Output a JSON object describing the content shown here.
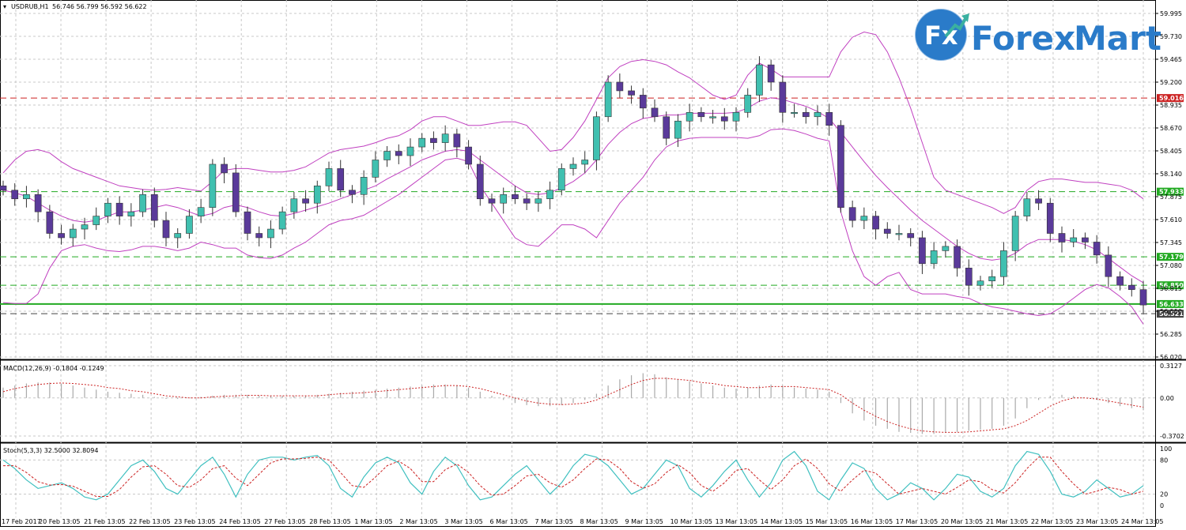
{
  "colors": {
    "bullish": "#40c0b0",
    "bearish": "#5a3a9a",
    "bands": "#c040c0",
    "grid": "#c8c8c8",
    "resistance_red": "#cc2222",
    "support_green": "#22aa22",
    "support_gray": "#444444",
    "macd_hist": "#aaaaaa",
    "macd_signal": "#cc2222",
    "stoch_main": "#40c0c0",
    "stoch_signal": "#cc2222",
    "brand_blue": "#2a7bc9",
    "brand_teal": "#3ab0a0"
  },
  "brand": {
    "icon_text": "Fx",
    "name_part1": "Forex",
    "name_part2": "Mart"
  },
  "chart_data": [
    {
      "type": "candlestick",
      "title": "USDRUB,H1",
      "ohlc_readout": "56.746 56.799 56.592 56.622",
      "ylim": [
        56.02,
        59.995
      ],
      "y_ticks": [
        "59.995",
        "59.730",
        "59.465",
        "59.200",
        "58.935",
        "58.670",
        "58.405",
        "58.140",
        "57.875",
        "57.610",
        "57.345",
        "57.080",
        "56.815",
        "56.550",
        "56.285",
        "56.020"
      ],
      "x_ticks": [
        "17 Feb 2017",
        "20 Feb 13:05",
        "21 Feb 13:05",
        "22 Feb 13:05",
        "23 Feb 13:05",
        "24 Feb 13:05",
        "27 Feb 13:05",
        "28 Feb 13:05",
        "1 Mar 13:05",
        "2 Mar 13:05",
        "3 Mar 13:05",
        "6 Mar 13:05",
        "7 Mar 13:05",
        "8 Mar 13:05",
        "9 Mar 13:05",
        "10 Mar 13:05",
        "13 Mar 13:05",
        "14 Mar 13:05",
        "15 Mar 13:05",
        "16 Mar 13:05",
        "17 Mar 13:05",
        "20 Mar 13:05",
        "21 Mar 13:05",
        "22 Mar 13:05",
        "23 Mar 13:05",
        "24 Mar 13:05"
      ],
      "level_lines": [
        {
          "price": 59.016,
          "label": "59.016",
          "style": "dashed",
          "color": "#cc2222"
        },
        {
          "price": 57.933,
          "label": "57.933",
          "style": "dashed",
          "color": "#22aa22"
        },
        {
          "price": 57.179,
          "label": "57.179",
          "style": "dashed",
          "color": "#22aa22"
        },
        {
          "price": 56.85,
          "label": "56.850",
          "style": "dashed",
          "color": "#22aa22"
        },
        {
          "price": 56.633,
          "label": "56.633",
          "style": "solid",
          "color": "#22aa22"
        },
        {
          "price": 56.521,
          "label": "56.521",
          "style": "dashed",
          "color": "#444444"
        }
      ],
      "close_path": [
        57.95,
        57.85,
        57.9,
        57.7,
        57.45,
        57.4,
        57.5,
        57.55,
        57.65,
        57.8,
        57.65,
        57.7,
        57.9,
        57.6,
        57.4,
        57.45,
        57.65,
        57.75,
        58.25,
        58.15,
        57.7,
        57.45,
        57.4,
        57.5,
        57.7,
        57.85,
        57.8,
        58.0,
        58.2,
        57.95,
        57.9,
        58.1,
        58.3,
        58.4,
        58.35,
        58.45,
        58.55,
        58.5,
        58.6,
        58.45,
        58.25,
        57.85,
        57.8,
        57.9,
        57.85,
        57.8,
        57.85,
        57.95,
        58.2,
        58.25,
        58.3,
        58.8,
        59.2,
        59.1,
        59.05,
        58.9,
        58.8,
        58.55,
        58.75,
        58.85,
        58.8,
        58.8,
        58.75,
        58.85,
        59.05,
        59.4,
        59.2,
        58.85,
        58.85,
        58.8,
        58.85,
        58.7,
        57.75,
        57.6,
        57.65,
        57.5,
        57.45,
        57.45,
        57.4,
        57.1,
        57.25,
        57.3,
        57.05,
        56.85,
        56.9,
        56.95,
        57.25,
        57.65,
        57.85,
        57.8,
        57.45,
        57.35,
        57.4,
        57.35,
        57.2,
        56.95,
        56.85,
        56.8,
        56.622
      ],
      "bb_mid": [
        57.95,
        57.92,
        57.88,
        57.8,
        57.72,
        57.65,
        57.6,
        57.58,
        57.6,
        57.65,
        57.7,
        57.7,
        57.72,
        57.75,
        57.78,
        57.75,
        57.7,
        57.65,
        57.68,
        57.75,
        57.78,
        57.75,
        57.7,
        57.66,
        57.65,
        57.68,
        57.72,
        57.76,
        57.8,
        57.85,
        57.9,
        57.95,
        58.0,
        58.08,
        58.15,
        58.22,
        58.3,
        58.35,
        58.4,
        58.42,
        58.4,
        58.3,
        58.2,
        58.1,
        58.0,
        57.92,
        57.9,
        57.92,
        57.98,
        58.05,
        58.15,
        58.3,
        58.48,
        58.62,
        58.72,
        58.78,
        58.8,
        58.82,
        58.82,
        58.84,
        58.84,
        58.84,
        58.84,
        58.85,
        58.9,
        58.98,
        59.02,
        59.0,
        58.96,
        58.92,
        58.86,
        58.78,
        58.62,
        58.45,
        58.28,
        58.12,
        57.98,
        57.85,
        57.72,
        57.6,
        57.5,
        57.4,
        57.3,
        57.22,
        57.16,
        57.14,
        57.16,
        57.22,
        57.32,
        57.38,
        57.38,
        57.38,
        57.36,
        57.32,
        57.26,
        57.16,
        57.06,
        56.96,
        56.88
      ],
      "bb_upper": [
        58.15,
        58.3,
        58.4,
        58.42,
        58.38,
        58.28,
        58.2,
        58.15,
        58.1,
        58.05,
        58.0,
        57.98,
        57.96,
        57.95,
        57.96,
        57.98,
        57.96,
        57.94,
        58.05,
        58.18,
        58.2,
        58.2,
        58.18,
        58.16,
        58.16,
        58.18,
        58.22,
        58.3,
        58.38,
        58.42,
        58.44,
        58.46,
        58.5,
        58.55,
        58.58,
        58.65,
        58.75,
        58.8,
        58.8,
        58.75,
        58.7,
        58.7,
        58.72,
        58.74,
        58.74,
        58.7,
        58.55,
        58.4,
        58.42,
        58.56,
        58.75,
        59.0,
        59.25,
        59.38,
        59.44,
        59.46,
        59.44,
        59.4,
        59.32,
        59.25,
        59.15,
        59.05,
        59.0,
        59.05,
        59.28,
        59.42,
        59.35,
        59.26,
        59.26,
        59.26,
        59.26,
        59.26,
        59.55,
        59.72,
        59.78,
        59.75,
        59.55,
        59.25,
        58.9,
        58.5,
        58.1,
        57.95,
        57.9,
        57.85,
        57.8,
        57.75,
        57.68,
        57.75,
        57.95,
        58.05,
        58.08,
        58.08,
        58.06,
        58.04,
        58.04,
        58.02,
        58.0,
        57.95,
        57.85
      ],
      "bb_lower": [
        56.65,
        56.64,
        56.64,
        56.75,
        57.05,
        57.25,
        57.3,
        57.32,
        57.28,
        57.25,
        57.24,
        57.26,
        57.3,
        57.3,
        57.28,
        57.25,
        57.28,
        57.35,
        57.32,
        57.28,
        57.28,
        57.2,
        57.17,
        57.16,
        57.2,
        57.28,
        57.35,
        57.45,
        57.55,
        57.6,
        57.62,
        57.66,
        57.74,
        57.82,
        57.9,
        58.0,
        58.1,
        58.2,
        58.3,
        58.32,
        58.28,
        58.0,
        57.8,
        57.6,
        57.4,
        57.32,
        57.3,
        57.42,
        57.55,
        57.55,
        57.5,
        57.4,
        57.6,
        57.8,
        57.95,
        58.1,
        58.3,
        58.45,
        58.52,
        58.55,
        58.56,
        58.56,
        58.56,
        58.56,
        58.55,
        58.58,
        58.65,
        58.66,
        58.64,
        58.6,
        58.55,
        58.52,
        57.7,
        57.25,
        56.95,
        56.85,
        56.95,
        57.0,
        56.8,
        56.75,
        56.75,
        56.75,
        56.72,
        56.7,
        56.64,
        56.6,
        56.58,
        56.55,
        56.52,
        56.5,
        56.52,
        56.6,
        56.7,
        56.8,
        56.86,
        56.82,
        56.72,
        56.6,
        56.4
      ]
    },
    {
      "type": "bar",
      "title": "MACD(12,26,9) -0.1804 -0.1249",
      "ylim": [
        -0.3702,
        0.3127
      ],
      "y_ticks": [
        "0.3127",
        "0.00",
        "-0.3702"
      ],
      "histogram": [
        0.1,
        0.12,
        0.14,
        0.15,
        0.15,
        0.14,
        0.12,
        0.1,
        0.08,
        0.06,
        0.05,
        0.04,
        0.03,
        0.01,
        -0.01,
        -0.01,
        0.0,
        0.01,
        0.02,
        0.03,
        0.03,
        0.03,
        0.02,
        0.02,
        0.02,
        0.02,
        0.02,
        0.03,
        0.04,
        0.05,
        0.06,
        0.07,
        0.08,
        0.09,
        0.1,
        0.11,
        0.12,
        0.13,
        0.13,
        0.12,
        0.1,
        0.06,
        0.02,
        -0.02,
        -0.05,
        -0.07,
        -0.08,
        -0.08,
        -0.07,
        -0.05,
        -0.02,
        0.04,
        0.12,
        0.18,
        0.22,
        0.24,
        0.23,
        0.2,
        0.18,
        0.16,
        0.14,
        0.12,
        0.1,
        0.09,
        0.1,
        0.12,
        0.13,
        0.12,
        0.1,
        0.09,
        0.08,
        0.06,
        -0.05,
        -0.15,
        -0.22,
        -0.27,
        -0.3,
        -0.33,
        -0.34,
        -0.35,
        -0.35,
        -0.34,
        -0.33,
        -0.32,
        -0.31,
        -0.3,
        -0.27,
        -0.2,
        -0.1,
        -0.02,
        0.02,
        0.03,
        0.02,
        0.0,
        -0.02,
        -0.05,
        -0.08,
        -0.1,
        -0.12
      ],
      "signal": [
        0.06,
        0.09,
        0.11,
        0.13,
        0.14,
        0.145,
        0.14,
        0.13,
        0.12,
        0.1,
        0.09,
        0.07,
        0.06,
        0.04,
        0.02,
        0.01,
        0.0,
        0.0,
        0.01,
        0.015,
        0.02,
        0.025,
        0.025,
        0.02,
        0.02,
        0.02,
        0.02,
        0.02,
        0.03,
        0.04,
        0.045,
        0.05,
        0.06,
        0.07,
        0.08,
        0.09,
        0.1,
        0.11,
        0.12,
        0.12,
        0.11,
        0.09,
        0.06,
        0.03,
        0.0,
        -0.03,
        -0.05,
        -0.06,
        -0.065,
        -0.06,
        -0.05,
        -0.02,
        0.03,
        0.08,
        0.13,
        0.17,
        0.19,
        0.19,
        0.18,
        0.17,
        0.15,
        0.14,
        0.12,
        0.11,
        0.1,
        0.1,
        0.11,
        0.11,
        0.11,
        0.1,
        0.09,
        0.08,
        0.03,
        -0.05,
        -0.12,
        -0.18,
        -0.23,
        -0.27,
        -0.3,
        -0.32,
        -0.33,
        -0.335,
        -0.335,
        -0.33,
        -0.32,
        -0.31,
        -0.3,
        -0.27,
        -0.22,
        -0.15,
        -0.08,
        -0.03,
        0.0,
        0.0,
        -0.01,
        -0.03,
        -0.05,
        -0.07,
        -0.09
      ]
    },
    {
      "type": "line",
      "title": "Stoch(5,3,3) 32.5000 32.8094",
      "ylim": [
        0,
        100
      ],
      "y_ticks": [
        "100",
        "80",
        "20",
        "0"
      ],
      "main": [
        80,
        65,
        45,
        30,
        35,
        40,
        30,
        15,
        10,
        20,
        45,
        70,
        80,
        60,
        30,
        20,
        45,
        70,
        85,
        55,
        15,
        55,
        80,
        85,
        85,
        80,
        85,
        88,
        70,
        30,
        15,
        50,
        75,
        85,
        75,
        40,
        20,
        60,
        85,
        70,
        35,
        10,
        15,
        35,
        55,
        70,
        45,
        20,
        40,
        70,
        90,
        85,
        70,
        45,
        20,
        30,
        55,
        80,
        70,
        30,
        15,
        35,
        60,
        80,
        45,
        15,
        40,
        80,
        95,
        70,
        25,
        10,
        45,
        75,
        65,
        30,
        10,
        20,
        40,
        30,
        10,
        30,
        55,
        50,
        25,
        15,
        30,
        70,
        95,
        90,
        60,
        20,
        15,
        25,
        45,
        30,
        15,
        20,
        35
      ],
      "signal": [
        70,
        70,
        58,
        42,
        36,
        37,
        34,
        25,
        16,
        16,
        28,
        50,
        68,
        70,
        55,
        35,
        32,
        45,
        65,
        70,
        48,
        35,
        55,
        75,
        82,
        82,
        83,
        85,
        80,
        58,
        35,
        32,
        50,
        70,
        78,
        65,
        42,
        42,
        63,
        73,
        58,
        35,
        18,
        20,
        35,
        52,
        55,
        40,
        32,
        45,
        65,
        82,
        80,
        65,
        42,
        30,
        38,
        58,
        72,
        58,
        35,
        25,
        40,
        62,
        65,
        45,
        28,
        45,
        70,
        82,
        65,
        38,
        25,
        45,
        62,
        57,
        38,
        20,
        25,
        30,
        25,
        20,
        32,
        45,
        42,
        28,
        22,
        40,
        65,
        85,
        85,
        60,
        38,
        20,
        25,
        32,
        28,
        20,
        25
      ]
    }
  ]
}
